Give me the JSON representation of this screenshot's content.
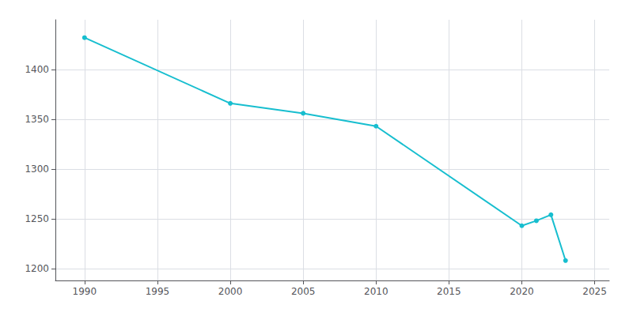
{
  "chart_data": {
    "type": "line",
    "x": [
      1990,
      2000,
      2005,
      2010,
      2020,
      2021,
      2022,
      2023
    ],
    "values": [
      1432,
      1366,
      1356,
      1343,
      1243,
      1248,
      1254,
      1208
    ],
    "color": "#17becf",
    "marker": "circle",
    "xlim": [
      1988,
      2026
    ],
    "ylim": [
      1188,
      1450
    ],
    "xticks": [
      1990,
      1995,
      2000,
      2005,
      2010,
      2015,
      2020,
      2025
    ],
    "yticks": [
      1200,
      1250,
      1300,
      1350,
      1400
    ],
    "grid": true
  }
}
